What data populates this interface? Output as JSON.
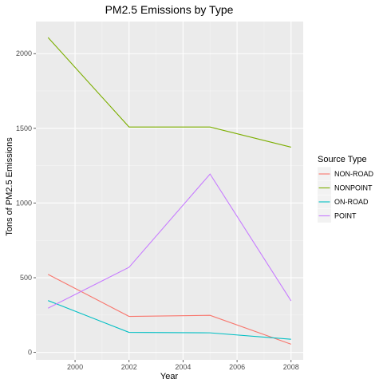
{
  "chart_data": {
    "type": "line",
    "title": "PM2.5 Emissions by Type",
    "xlabel": "Year",
    "ylabel": "Tons of PM2.5 Emissions",
    "x": [
      1999,
      2002,
      2005,
      2008
    ],
    "xticks": [
      2000,
      2002,
      2004,
      2006,
      2008
    ],
    "yticks": [
      0,
      500,
      1000,
      1500,
      2000
    ],
    "xlim": [
      1998.55,
      2008.45
    ],
    "ylim": [
      -50,
      2215
    ],
    "grid": true,
    "legend_title": "Source Type",
    "legend_position": "right",
    "series": [
      {
        "name": "NON-ROAD",
        "color": "#F8766D",
        "values": [
          522,
          241,
          248,
          55
        ]
      },
      {
        "name": "NONPOINT",
        "color": "#7CAE00",
        "values": [
          2108,
          1509,
          1509,
          1374
        ]
      },
      {
        "name": "ON-ROAD",
        "color": "#00BFC4",
        "values": [
          347,
          134,
          131,
          88
        ]
      },
      {
        "name": "POINT",
        "color": "#C77CFF",
        "values": [
          296,
          570,
          1194,
          345
        ]
      }
    ]
  }
}
